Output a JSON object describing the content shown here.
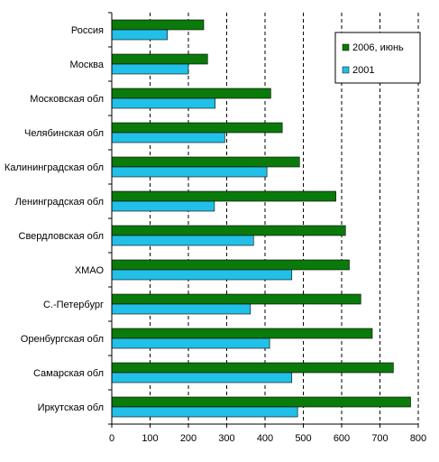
{
  "chart_data": {
    "type": "bar",
    "orientation": "horizontal",
    "categories": [
      "Россия",
      "Москва",
      "Московская обл",
      "Челябинская обл",
      "Калининградская обл",
      "Ленинградская обл",
      "Свердловская обл",
      "ХМАО",
      "С.-Петербург",
      "Оренбургская обл",
      "Самарская обл",
      "Иркутская обл"
    ],
    "series": [
      {
        "name": "2006, июнь",
        "color": "#0a7a0a",
        "values": [
          240,
          250,
          415,
          445,
          490,
          585,
          610,
          620,
          650,
          680,
          735,
          780
        ]
      },
      {
        "name": "2001",
        "color": "#22c0e8",
        "values": [
          145,
          200,
          270,
          295,
          405,
          268,
          370,
          470,
          362,
          412,
          470,
          485
        ]
      }
    ],
    "xlim": [
      0,
      800
    ],
    "xticks": [
      0,
      100,
      200,
      300,
      400,
      500,
      600,
      700,
      800
    ],
    "grid": "vertical-dashed",
    "legend_position": "top-right"
  }
}
